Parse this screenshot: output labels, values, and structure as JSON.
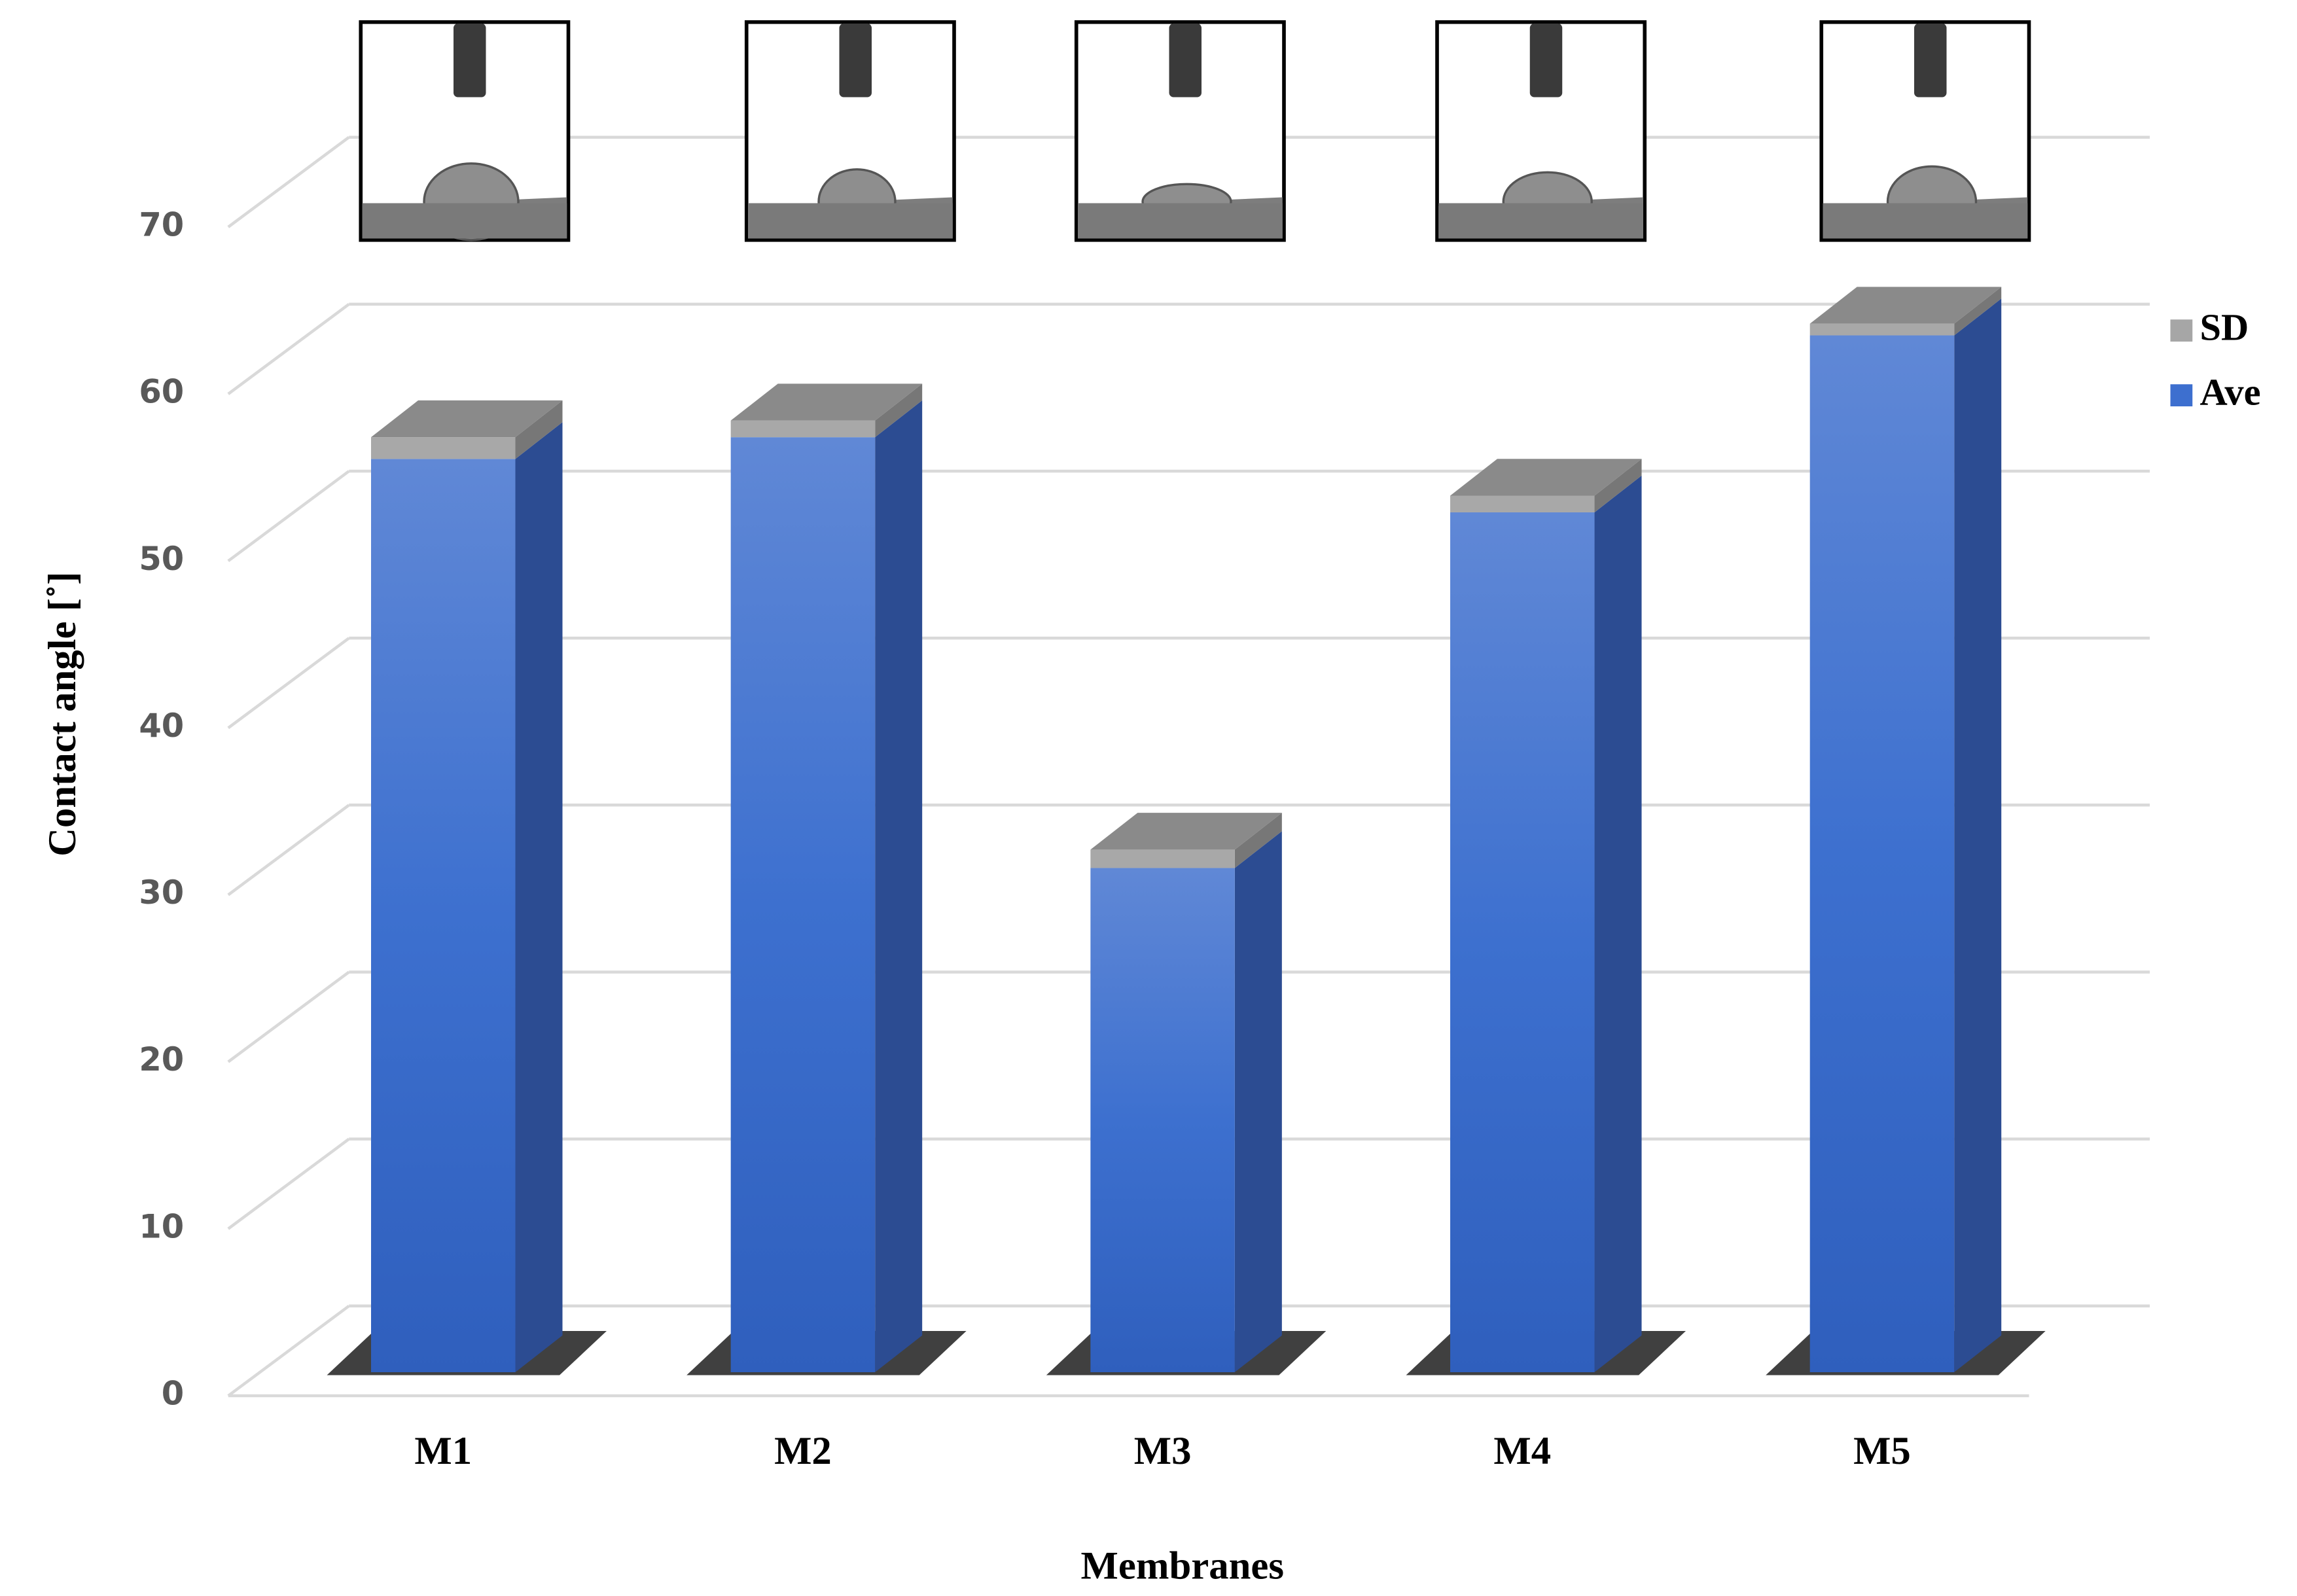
{
  "chart_data": {
    "type": "bar3d_stacked",
    "y_label": "Contact angle [˚]",
    "x_label": "Membranes",
    "categories": [
      "M1",
      "M2",
      "M3",
      "M4",
      "M5"
    ],
    "series": [
      {
        "name": "Ave",
        "color": "#3d6fcf",
        "values": [
          54.7,
          56,
          30.2,
          51.5,
          62.1
        ]
      },
      {
        "name": "SD",
        "color": "#a6a6a6",
        "values": [
          1.3,
          1,
          1.1,
          1,
          0.7
        ]
      }
    ],
    "ylim": [
      0,
      70
    ],
    "yticks": [
      0,
      10,
      20,
      30,
      40,
      50,
      60,
      70
    ],
    "grid": true,
    "legend": "right"
  }
}
